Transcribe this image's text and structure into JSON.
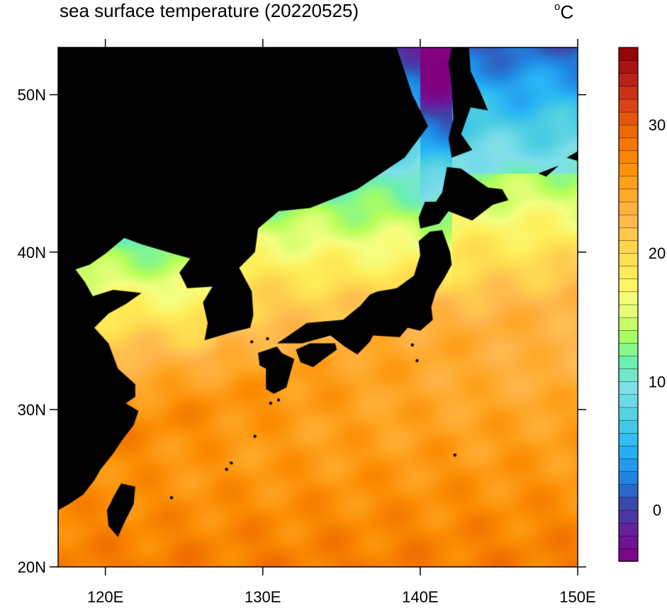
{
  "title": "sea surface temperature (20220525)",
  "unit": "C",
  "unit_prefix": "o",
  "map": {
    "lon_range": [
      117,
      150
    ],
    "lat_range": [
      20,
      53
    ],
    "lon_ticks": [
      120,
      130,
      140,
      150
    ],
    "lat_ticks": [
      20,
      30,
      40,
      50
    ],
    "lon_labels": [
      "120E",
      "130E",
      "140E",
      "150E"
    ],
    "lat_labels": [
      "20N",
      "30N",
      "40N",
      "50N"
    ],
    "land_color": "#000000"
  },
  "colorbar": {
    "min": -4,
    "max": 36,
    "ticks": [
      0,
      10,
      20,
      30
    ],
    "tick_labels": [
      "0",
      "10",
      "20",
      "30"
    ],
    "colors": [
      "#800080",
      "#6a1b9a",
      "#3949ab",
      "#1e88e5",
      "#29b6f6",
      "#4dd0e1",
      "#80deea",
      "#69f0ae",
      "#b2ff59",
      "#f4ff81",
      "#ffee58",
      "#ffd54f",
      "#ffb74d",
      "#ffa726",
      "#fb8c00",
      "#ef6c00",
      "#d84315",
      "#b71c1c",
      "#8b0000"
    ]
  }
}
